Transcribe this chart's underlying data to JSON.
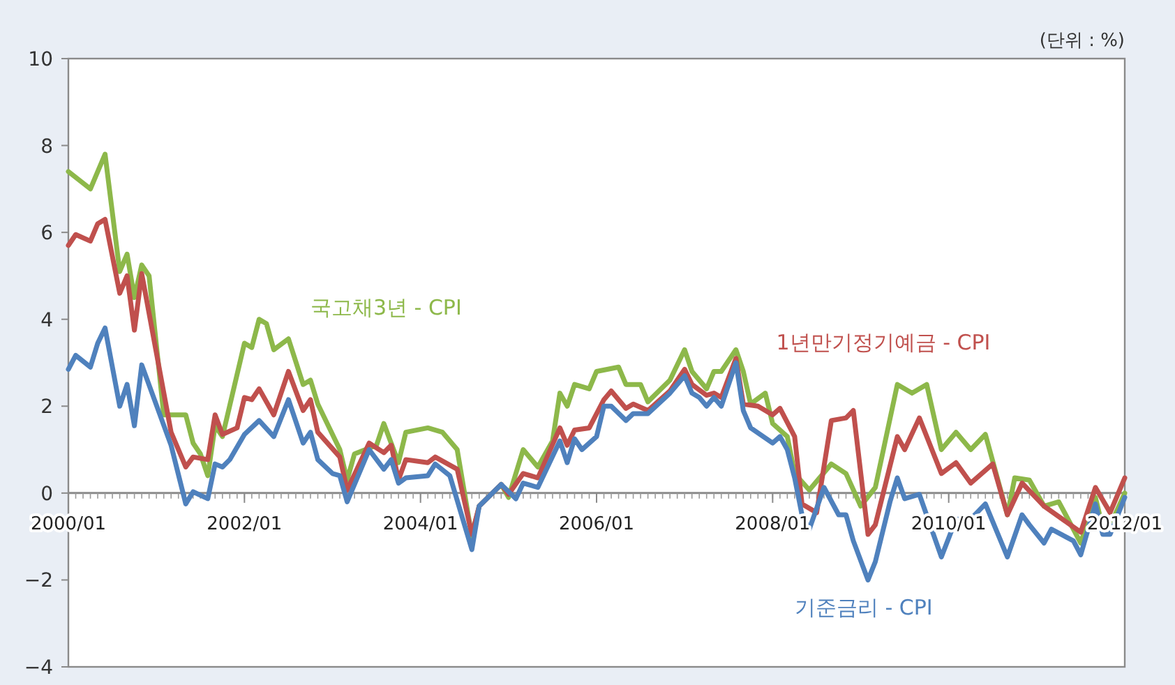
{
  "chart_data": {
    "type": "line",
    "annotations": [
      "(단위 : %)"
    ],
    "xlim": [
      "2000-01",
      "2012-01"
    ],
    "ylim": [
      -4,
      10
    ],
    "yticks": [
      -4,
      -2,
      0,
      2,
      4,
      6,
      8,
      10
    ],
    "xticks": [
      {
        "value": "2000-01",
        "label": "2000/01"
      },
      {
        "value": "2002-01",
        "label": "2002/01"
      },
      {
        "value": "2004-01",
        "label": "2004/01"
      },
      {
        "value": "2006-01",
        "label": "2006/01"
      },
      {
        "value": "2008-01",
        "label": "2008/01"
      },
      {
        "value": "2010-01",
        "label": "2010/01"
      },
      {
        "value": "2012-01",
        "label": "2012/01"
      }
    ],
    "series": [
      {
        "name": "국고채3년 - CPI",
        "color": "#8db84a",
        "x": [
          "2000-01",
          "2000-04",
          "2000-06",
          "2000-08",
          "2000-09",
          "2000-10",
          "2000-11",
          "2000-12",
          "2001-02",
          "2001-05",
          "2001-06",
          "2001-07",
          "2001-08",
          "2001-09",
          "2001-10",
          "2002-01",
          "2002-02",
          "2002-03",
          "2002-04",
          "2002-05",
          "2002-07",
          "2002-09",
          "2002-10",
          "2002-11",
          "2003-02",
          "2003-03",
          "2003-04",
          "2003-07",
          "2003-08",
          "2003-10",
          "2003-11",
          "2004-02",
          "2004-04",
          "2004-06",
          "2004-08",
          "2004-09",
          "2004-12",
          "2005-01",
          "2005-03",
          "2005-05",
          "2005-07",
          "2005-08",
          "2005-09",
          "2005-10",
          "2005-12",
          "2006-01",
          "2006-04",
          "2006-05",
          "2006-07",
          "2006-08",
          "2006-11",
          "2007-01",
          "2007-02",
          "2007-04",
          "2007-05",
          "2007-06",
          "2007-08",
          "2007-09",
          "2007-10",
          "2007-12",
          "2008-01",
          "2008-03",
          "2008-04",
          "2008-06",
          "2008-09",
          "2008-11",
          "2009-01",
          "2009-03",
          "2009-06",
          "2009-08",
          "2009-10",
          "2009-12",
          "2010-02",
          "2010-04",
          "2010-06",
          "2010-09",
          "2010-10",
          "2010-12",
          "2011-02",
          "2011-04",
          "2011-07",
          "2011-09",
          "2011-10",
          "2011-11",
          "2012-01"
        ],
        "values": [
          7.4,
          7.0,
          7.8,
          5.1,
          5.5,
          4.5,
          5.25,
          5.0,
          1.8,
          1.8,
          1.15,
          0.9,
          0.4,
          1.55,
          1.3,
          3.45,
          3.35,
          4.0,
          3.9,
          3.3,
          3.55,
          2.5,
          2.6,
          2.05,
          1.0,
          0.3,
          0.9,
          1.1,
          1.6,
          0.7,
          1.4,
          1.5,
          1.4,
          1.0,
          -1.0,
          -0.3,
          0.2,
          -0.1,
          1.0,
          0.6,
          1.2,
          2.3,
          2.0,
          2.5,
          2.4,
          2.8,
          2.9,
          2.5,
          2.5,
          2.1,
          2.6,
          3.3,
          2.8,
          2.4,
          2.8,
          2.8,
          3.3,
          2.8,
          2.05,
          2.3,
          1.6,
          1.3,
          0.45,
          0.07,
          0.67,
          0.45,
          -0.3,
          0.13,
          2.5,
          2.3,
          2.5,
          1.0,
          1.4,
          1.0,
          1.35,
          -0.5,
          0.35,
          0.3,
          -0.3,
          -0.2,
          -1.15,
          -0.1,
          -0.8,
          -0.75,
          0.0
        ]
      },
      {
        "name": "1년만기정기예금 - CPI",
        "color": "#c0504d",
        "x": [
          "2000-01",
          "2000-02",
          "2000-04",
          "2000-05",
          "2000-06",
          "2000-08",
          "2000-09",
          "2000-10",
          "2000-11",
          "2001-03",
          "2001-05",
          "2001-06",
          "2001-08",
          "2001-09",
          "2001-10",
          "2001-12",
          "2002-01",
          "2002-02",
          "2002-03",
          "2002-05",
          "2002-07",
          "2002-09",
          "2002-10",
          "2002-11",
          "2003-02",
          "2003-03",
          "2003-06",
          "2003-08",
          "2003-09",
          "2003-10",
          "2003-11",
          "2004-02",
          "2004-03",
          "2004-06",
          "2004-08",
          "2004-09",
          "2004-12",
          "2005-01",
          "2005-03",
          "2005-05",
          "2005-08",
          "2005-09",
          "2005-10",
          "2005-12",
          "2006-02",
          "2006-03",
          "2006-05",
          "2006-06",
          "2006-08",
          "2006-11",
          "2007-01",
          "2007-02",
          "2007-04",
          "2007-05",
          "2007-06",
          "2007-08",
          "2007-09",
          "2007-11",
          "2008-01",
          "2008-02",
          "2008-04",
          "2008-05",
          "2008-07",
          "2008-09",
          "2008-11",
          "2008-12",
          "2009-02",
          "2009-03",
          "2009-06",
          "2009-07",
          "2009-09",
          "2009-12",
          "2010-02",
          "2010-04",
          "2010-07",
          "2010-09",
          "2010-11",
          "2011-02",
          "2011-07",
          "2011-09",
          "2011-11",
          "2012-01"
        ],
        "values": [
          5.7,
          5.95,
          5.8,
          6.2,
          6.3,
          4.6,
          5.0,
          3.75,
          5.05,
          1.4,
          0.6,
          0.83,
          0.77,
          1.8,
          1.35,
          1.5,
          2.2,
          2.15,
          2.4,
          1.8,
          2.8,
          1.9,
          2.15,
          1.4,
          0.83,
          0.07,
          1.15,
          0.93,
          1.1,
          0.3,
          0.77,
          0.7,
          0.83,
          0.55,
          -0.95,
          -0.3,
          0.2,
          -0.03,
          0.45,
          0.35,
          1.5,
          1.1,
          1.45,
          1.5,
          2.15,
          2.35,
          1.95,
          2.05,
          1.9,
          2.35,
          2.85,
          2.5,
          2.25,
          2.3,
          2.2,
          3.1,
          2.05,
          2.0,
          1.8,
          1.95,
          1.3,
          -0.25,
          -0.45,
          1.67,
          1.73,
          1.9,
          -0.95,
          -0.73,
          1.3,
          1.0,
          1.73,
          0.45,
          0.7,
          0.23,
          0.67,
          -0.5,
          0.23,
          -0.3,
          -0.9,
          0.13,
          -0.45,
          0.35
        ]
      },
      {
        "name": "기준금리 - CPI",
        "color": "#4f81bd",
        "x": [
          "2000-01",
          "2000-02",
          "2000-04",
          "2000-05",
          "2000-06",
          "2000-08",
          "2000-09",
          "2000-10",
          "2000-11",
          "2001-03",
          "2001-05",
          "2001-06",
          "2001-08",
          "2001-09",
          "2001-10",
          "2001-11",
          "2002-01",
          "2002-03",
          "2002-05",
          "2002-07",
          "2002-09",
          "2002-10",
          "2002-11",
          "2003-01",
          "2003-02",
          "2003-03",
          "2003-06",
          "2003-08",
          "2003-09",
          "2003-10",
          "2003-11",
          "2004-02",
          "2004-03",
          "2004-05",
          "2004-08",
          "2004-09",
          "2004-12",
          "2005-02",
          "2005-03",
          "2005-05",
          "2005-08",
          "2005-09",
          "2005-10",
          "2005-11",
          "2006-01",
          "2006-02",
          "2006-03",
          "2006-05",
          "2006-06",
          "2006-08",
          "2006-11",
          "2007-01",
          "2007-02",
          "2007-03",
          "2007-04",
          "2007-05",
          "2007-06",
          "2007-08",
          "2007-09",
          "2007-10",
          "2008-01",
          "2008-02",
          "2008-03",
          "2008-04",
          "2008-05",
          "2008-06",
          "2008-08",
          "2008-10",
          "2008-11",
          "2008-12",
          "2009-02",
          "2009-03",
          "2009-05",
          "2009-06",
          "2009-07",
          "2009-09",
          "2009-12",
          "2010-02",
          "2010-04",
          "2010-06",
          "2010-09",
          "2010-11",
          "2010-12",
          "2011-02",
          "2011-03",
          "2011-06",
          "2011-07",
          "2011-09",
          "2011-10",
          "2011-11",
          "2012-01"
        ],
        "values": [
          2.85,
          3.17,
          2.9,
          3.45,
          3.8,
          2.0,
          2.5,
          1.55,
          2.95,
          1.1,
          -0.25,
          0.03,
          -0.13,
          0.67,
          0.6,
          0.77,
          1.35,
          1.67,
          1.3,
          2.15,
          1.15,
          1.4,
          0.77,
          0.45,
          0.4,
          -0.2,
          1.0,
          0.55,
          0.77,
          0.23,
          0.35,
          0.4,
          0.67,
          0.4,
          -1.3,
          -0.3,
          0.2,
          -0.13,
          0.23,
          0.13,
          1.2,
          0.7,
          1.25,
          1.0,
          1.3,
          2.0,
          2.0,
          1.67,
          1.83,
          1.83,
          2.3,
          2.7,
          2.3,
          2.2,
          2.0,
          2.2,
          2.0,
          3.0,
          1.9,
          1.5,
          1.15,
          1.3,
          1.0,
          0.35,
          -0.5,
          -0.83,
          0.13,
          -0.5,
          -0.5,
          -1.1,
          -2.0,
          -1.58,
          -0.2,
          0.35,
          -0.13,
          -0.03,
          -1.47,
          -0.6,
          -0.6,
          -0.25,
          -1.47,
          -0.5,
          -0.73,
          -1.15,
          -0.83,
          -1.1,
          -1.42,
          -0.25,
          -0.95,
          -0.95,
          -0.1
        ]
      }
    ]
  }
}
